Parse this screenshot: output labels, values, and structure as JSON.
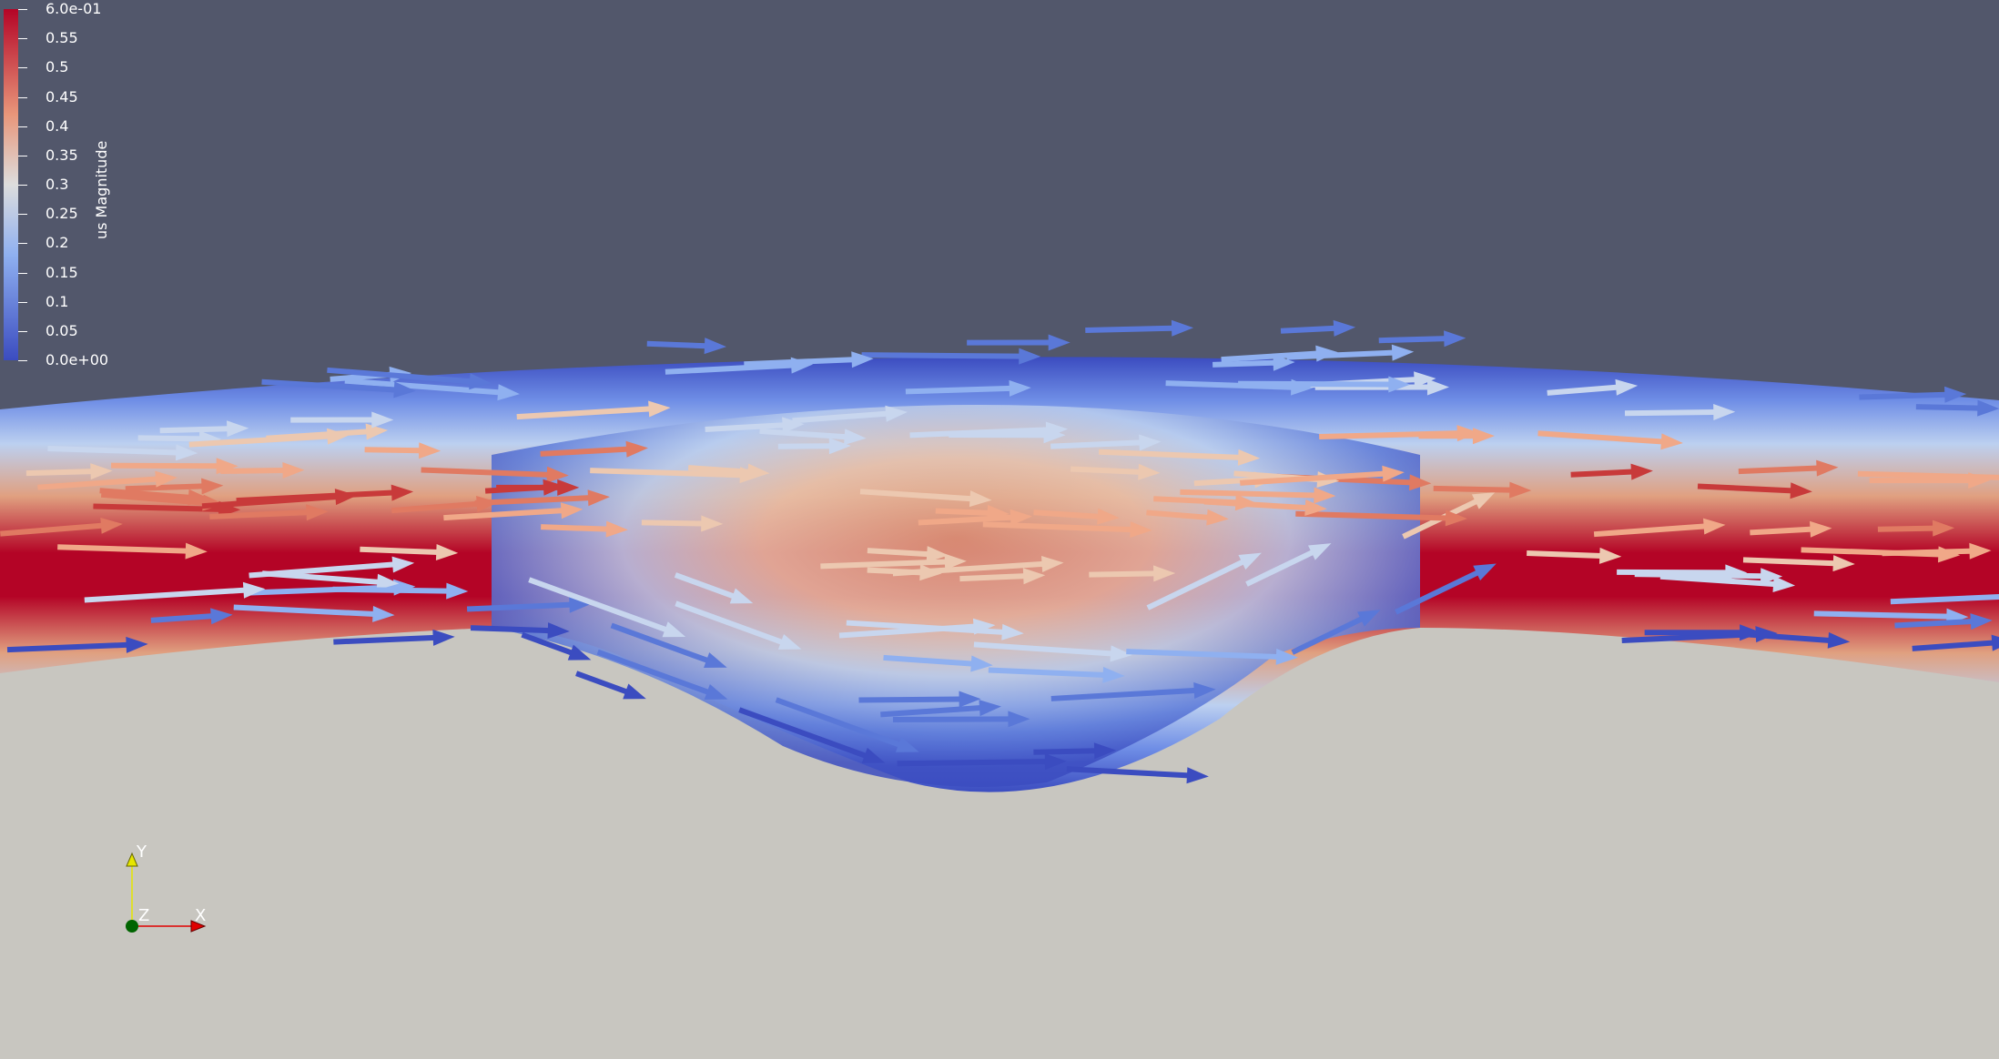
{
  "colorbar": {
    "title": "us Magnitude",
    "range": [
      0.0,
      0.6
    ],
    "ticks": [
      {
        "value": 0.6,
        "label": "6.0e-01"
      },
      {
        "value": 0.55,
        "label": "0.55"
      },
      {
        "value": 0.5,
        "label": "0.5"
      },
      {
        "value": 0.45,
        "label": "0.45"
      },
      {
        "value": 0.4,
        "label": "0.4"
      },
      {
        "value": 0.35,
        "label": "0.35"
      },
      {
        "value": 0.3,
        "label": "0.3"
      },
      {
        "value": 0.25,
        "label": "0.25"
      },
      {
        "value": 0.2,
        "label": "0.2"
      },
      {
        "value": 0.15,
        "label": "0.15"
      },
      {
        "value": 0.1,
        "label": "0.1"
      },
      {
        "value": 0.05,
        "label": "0.05"
      },
      {
        "value": 0.0,
        "label": "0.0e+00"
      }
    ],
    "colors": {
      "low": "#3b4cc0",
      "mid": "#dddddd",
      "high": "#b40426"
    }
  },
  "axes": {
    "x_label": "X",
    "y_label": "Y",
    "z_label": "Z",
    "x_color": "#e00000",
    "y_color": "#e6e600",
    "z_color": "#006400"
  },
  "scene": {
    "background_color": "#52576b",
    "ground_color": "#c8c6c0"
  }
}
